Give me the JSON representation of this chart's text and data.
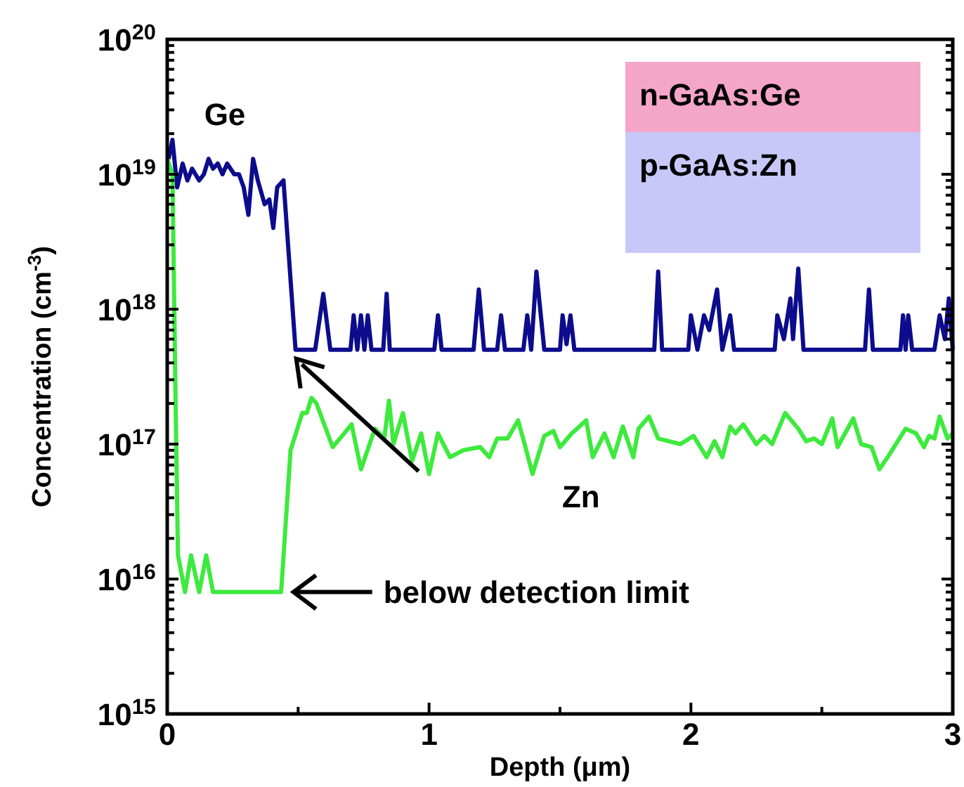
{
  "chart_data": {
    "type": "line",
    "xlabel": "Depth (μm)",
    "ylabel": "Concentration (cm$^{-3}$)",
    "log": "y",
    "xlim": [
      0,
      3
    ],
    "ylim": [
      1000000000000000.0,
      1e+20
    ],
    "xticks": [
      0,
      {
        "value": 0.5,
        "label": null
      },
      1,
      {
        "value": 1.5,
        "label": null
      },
      2,
      {
        "value": 2.5,
        "label": null
      },
      3
    ],
    "yticks": [
      {
        "value": 1000000000000000.0,
        "label": "10$^{15}$"
      },
      {
        "value": 2000000000000000.0,
        "label": null
      },
      {
        "value": 3000000000000000.0,
        "label": null
      },
      {
        "value": 4000000000000000.0,
        "label": null
      },
      {
        "value": 5000000000000000.0,
        "label": null
      },
      {
        "value": 6000000000000000.0,
        "label": null
      },
      {
        "value": 7000000000000000.0,
        "label": null
      },
      {
        "value": 8000000000000000.0,
        "label": null
      },
      {
        "value": 9000000000000000.0,
        "label": null
      },
      {
        "value": 1e+16,
        "label": "10$^{16}$"
      },
      {
        "value": 2e+16,
        "label": null
      },
      {
        "value": 3e+16,
        "label": null
      },
      {
        "value": 4e+16,
        "label": null
      },
      {
        "value": 5e+16,
        "label": null
      },
      {
        "value": 6e+16,
        "label": null
      },
      {
        "value": 7e+16,
        "label": null
      },
      {
        "value": 8e+16,
        "label": null
      },
      {
        "value": 9e+16,
        "label": null
      },
      {
        "value": 1e+17,
        "label": "10$^{17}$"
      },
      {
        "value": 2e+17,
        "label": null
      },
      {
        "value": 3e+17,
        "label": null
      },
      {
        "value": 4e+17,
        "label": null
      },
      {
        "value": 5e+17,
        "label": null
      },
      {
        "value": 6e+17,
        "label": null
      },
      {
        "value": 7e+17,
        "label": null
      },
      {
        "value": 8e+17,
        "label": null
      },
      {
        "value": 9e+17,
        "label": null
      },
      {
        "value": 1e+18,
        "label": "10$^{18}$"
      },
      {
        "value": 2e+18,
        "label": null
      },
      {
        "value": 3e+18,
        "label": null
      },
      {
        "value": 4e+18,
        "label": null
      },
      {
        "value": 5e+18,
        "label": null
      },
      {
        "value": 6e+18,
        "label": null
      },
      {
        "value": 7e+18,
        "label": null
      },
      {
        "value": 8e+18,
        "label": null
      },
      {
        "value": 9e+18,
        "label": null
      },
      {
        "value": 1e+19,
        "label": "10$^{19}$"
      },
      {
        "value": 2e+19,
        "label": null
      },
      {
        "value": 3e+19,
        "label": null
      },
      {
        "value": 4e+19,
        "label": null
      },
      {
        "value": 5e+19,
        "label": null
      },
      {
        "value": 6e+19,
        "label": null
      },
      {
        "value": 7e+19,
        "label": null
      },
      {
        "value": 8e+19,
        "label": null
      },
      {
        "value": 9e+19,
        "label": null
      },
      {
        "value": 1e+20,
        "label": "10$^{20}$"
      }
    ],
    "grid": false,
    "marker": "none",
    "line_style": "solid",
    "series": [
      {
        "name": "Ge",
        "color": "#0c0c8c",
        "x": [
          0.005,
          0.02,
          0.038,
          0.059,
          0.077,
          0.095,
          0.122,
          0.14,
          0.158,
          0.175,
          0.193,
          0.211,
          0.229,
          0.256,
          0.274,
          0.292,
          0.31,
          0.328,
          0.346,
          0.372,
          0.39,
          0.405,
          0.42,
          0.444,
          0.49,
          0.565,
          0.596,
          0.623,
          0.7,
          0.712,
          0.726,
          0.74,
          0.753,
          0.766,
          0.78,
          0.825,
          0.838,
          0.85,
          1.02,
          1.034,
          1.048,
          1.17,
          1.19,
          1.21,
          1.26,
          1.275,
          1.29,
          1.36,
          1.375,
          1.39,
          1.41,
          1.44,
          1.5,
          1.51,
          1.525,
          1.54,
          1.555,
          1.86,
          1.875,
          1.89,
          1.99,
          2.0,
          2.025,
          2.05,
          2.07,
          2.1,
          2.12,
          2.15,
          2.165,
          2.32,
          2.33,
          2.355,
          2.38,
          2.39,
          2.41,
          2.43,
          2.665,
          2.68,
          2.695,
          2.8,
          2.81,
          2.82,
          2.83,
          2.845,
          2.93,
          2.95,
          2.97,
          2.985,
          3.0
        ],
        "values": [
          1.3e+19,
          1.8e+19,
          8e+18,
          1.2e+19,
          9e+18,
          1.1e+19,
          9e+18,
          1e+19,
          1.3e+19,
          1.1e+19,
          1.2e+19,
          1e+19,
          1.2e+19,
          1e+19,
          1e+19,
          8e+18,
          5e+18,
          1.3e+19,
          9e+18,
          6e+18,
          6.5e+18,
          4e+18,
          8e+18,
          9e+18,
          5e+17,
          5e+17,
          1.3e+18,
          5e+17,
          5e+17,
          9e+17,
          5e+17,
          9e+17,
          5e+17,
          9e+17,
          5e+17,
          5e+17,
          1.3e+18,
          5e+17,
          5e+17,
          9e+17,
          5e+17,
          5e+17,
          1.4e+18,
          5e+17,
          5e+17,
          9e+17,
          5e+17,
          5e+17,
          9e+17,
          5e+17,
          1.9e+18,
          5e+17,
          5e+17,
          9e+17,
          5.5e+17,
          9e+17,
          5e+17,
          5e+17,
          1.9e+18,
          5e+17,
          5e+17,
          9e+17,
          5e+17,
          9e+17,
          7e+17,
          1.4e+18,
          5e+17,
          9e+17,
          5e+17,
          5e+17,
          9e+17,
          6e+17,
          1.2e+18,
          6e+17,
          2e+18,
          5e+17,
          5e+17,
          1.4e+18,
          5e+17,
          5e+17,
          9e+17,
          5e+17,
          9e+17,
          5e+17,
          5e+17,
          9e+17,
          6e+17,
          1.2e+18,
          5e+17
        ]
      },
      {
        "name": "Zn",
        "color": "#3dea3d",
        "x": [
          0,
          0.02,
          0.032,
          0.041,
          0.068,
          0.091,
          0.122,
          0.149,
          0.175,
          0.435,
          0.471,
          0.516,
          0.533,
          0.551,
          0.57,
          0.632,
          0.668,
          0.704,
          0.74,
          0.793,
          0.829,
          0.847,
          0.864,
          0.9,
          0.935,
          0.97,
          1.0,
          1.034,
          1.08,
          1.13,
          1.195,
          1.23,
          1.26,
          1.3,
          1.34,
          1.365,
          1.395,
          1.44,
          1.475,
          1.5,
          1.545,
          1.6,
          1.625,
          1.67,
          1.705,
          1.74,
          1.78,
          1.8,
          1.84,
          1.875,
          1.96,
          2.01,
          2.06,
          2.09,
          2.12,
          2.15,
          2.17,
          2.2,
          2.25,
          2.28,
          2.31,
          2.36,
          2.41,
          2.44,
          2.47,
          2.5,
          2.54,
          2.56,
          2.62,
          2.65,
          2.69,
          2.72,
          2.76,
          2.82,
          2.86,
          2.89,
          2.91,
          2.93,
          2.95,
          2.98,
          3.0
        ],
        "values": [
          1.3e+19,
          1e+19,
          2e+17,
          1.5e+16,
          8000000000000000.0,
          1.5e+16,
          8000000000000000.0,
          1.5e+16,
          8000000000000000.0,
          8000000000000000.0,
          9e+16,
          1.7e+17,
          1.7e+17,
          2.2e+17,
          2e+17,
          9.5e+16,
          1.15e+17,
          1.4e+17,
          6.5e+16,
          1.3e+17,
          1.1e+17,
          2.1e+17,
          1e+17,
          1.7e+17,
          7.5e+16,
          1.2e+17,
          6e+16,
          1.2e+17,
          8e+16,
          9e+16,
          9.5e+16,
          8e+16,
          1.1e+17,
          1.1e+17,
          1.5e+17,
          1e+17,
          6e+16,
          1.15e+17,
          1.25e+17,
          9.5e+16,
          1.2e+17,
          1.5e+17,
          8e+16,
          1.2e+17,
          8e+16,
          1.35e+17,
          8e+16,
          1.3e+17,
          1.6e+17,
          1.1e+17,
          1e+17,
          1.15e+17,
          8e+16,
          1.05e+17,
          8e+16,
          1.35e+17,
          1.2e+17,
          1.4e+17,
          1e+17,
          1.15e+17,
          1e+17,
          1.7e+17,
          1.3e+17,
          1.05e+17,
          1.1e+17,
          1e+17,
          1.55e+17,
          9.5e+16,
          1.55e+17,
          1e+17,
          9.5e+16,
          6.5e+16,
          8.5e+16,
          1.3e+17,
          1.2e+17,
          9.5e+16,
          1.15e+17,
          1.1e+17,
          1.6e+17,
          1.1e+17,
          1.2e+17
        ]
      }
    ],
    "annotations": [
      "n-GaAs:Ge",
      "p-GaAs:Zn",
      {
        "text": "below detection limit",
        "x": 0.45,
        "y": 8000000000000000.0
      }
    ]
  }
}
